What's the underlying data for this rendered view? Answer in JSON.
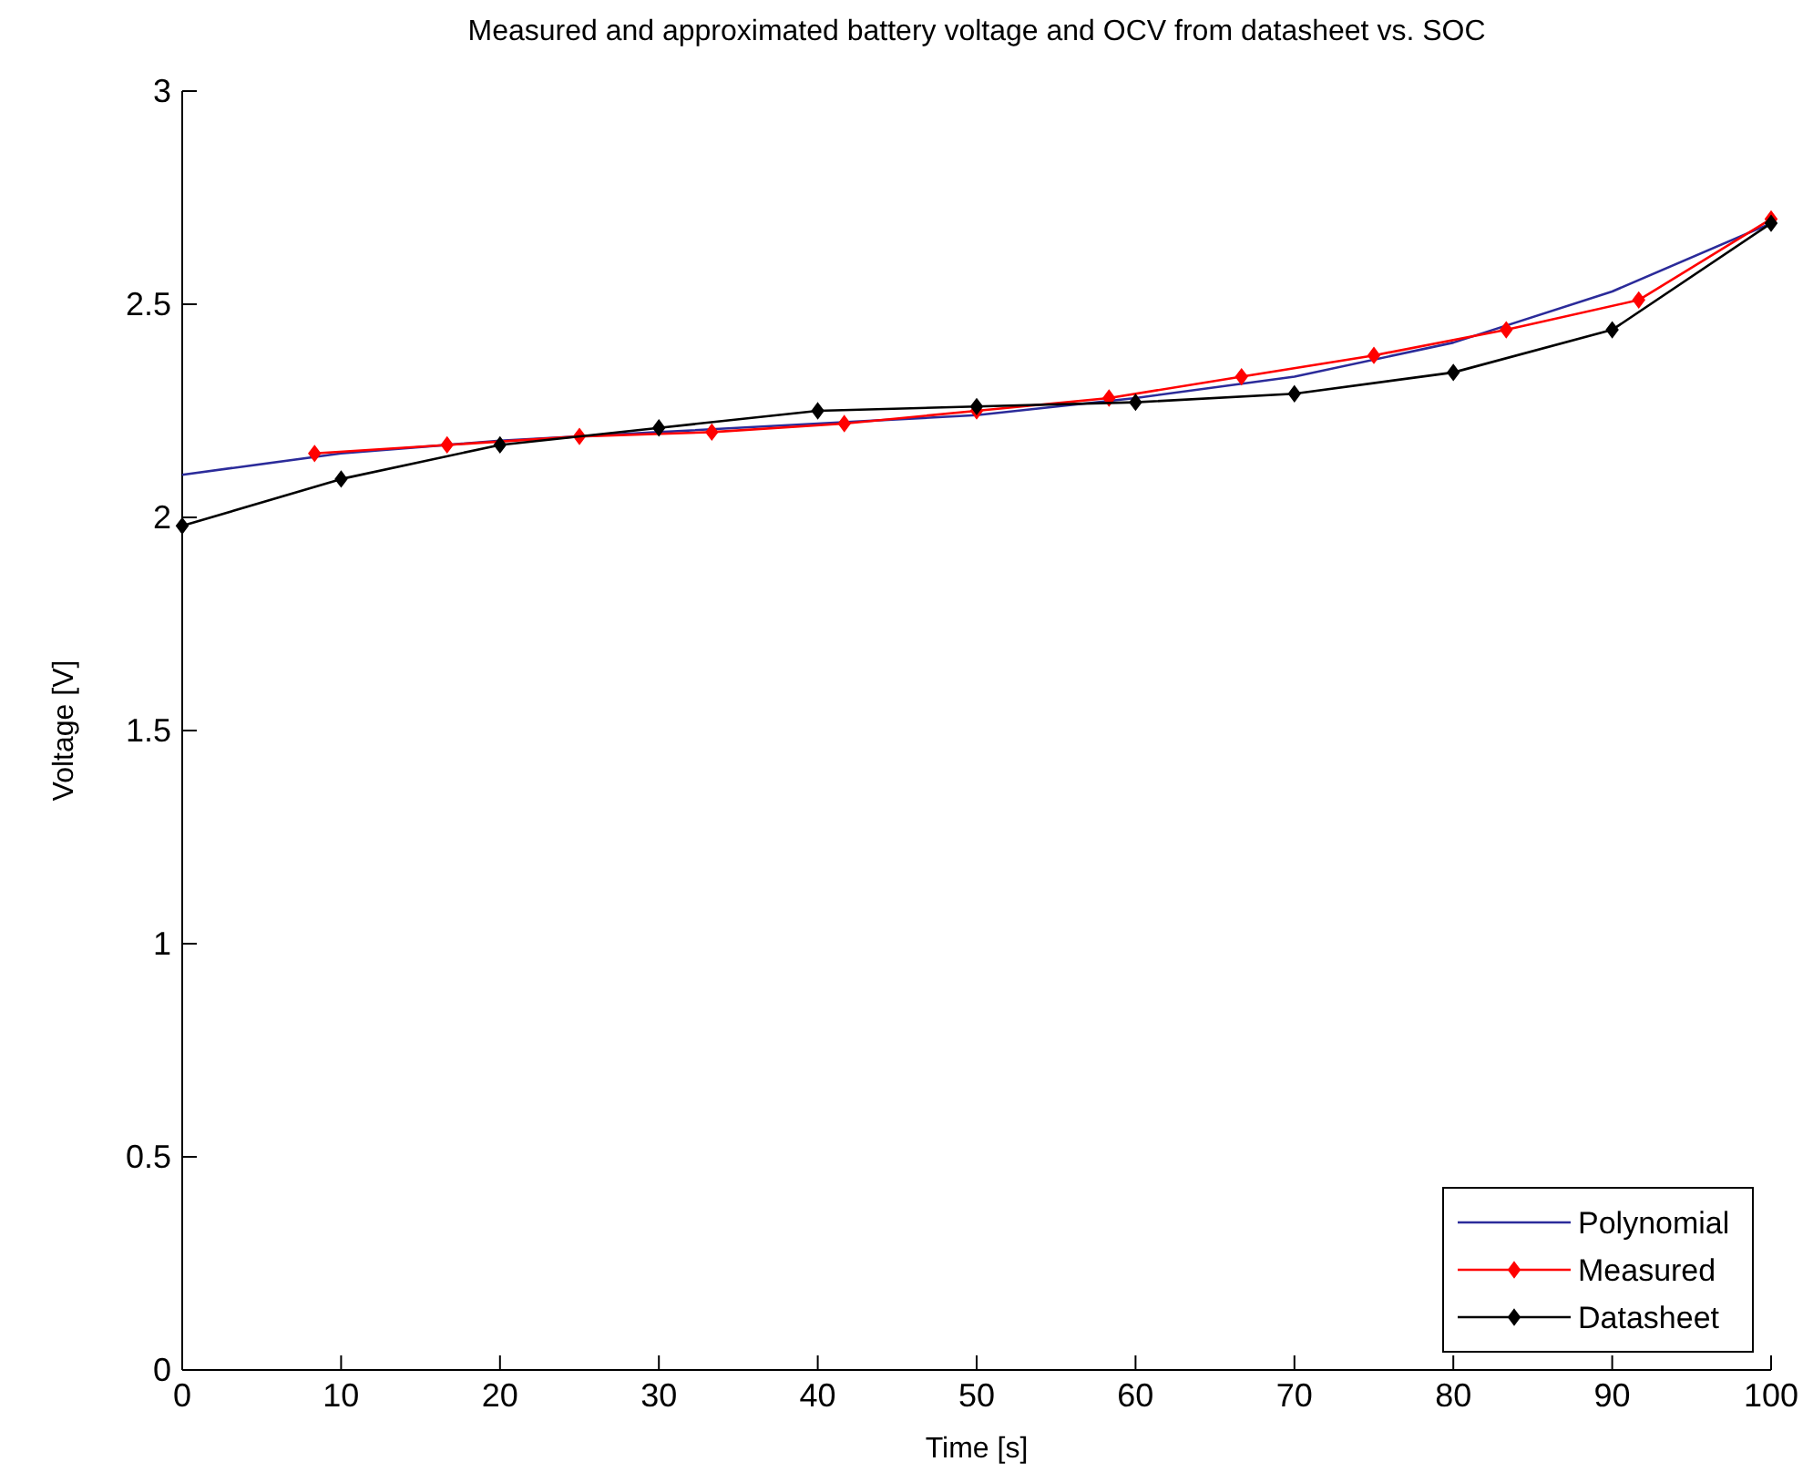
{
  "chart_data": {
    "type": "line",
    "title": "Measured and approximated battery voltage and OCV from datasheet vs. SOC",
    "xlabel": "Time [s]",
    "ylabel": "Voltage [V]",
    "xlim": [
      0,
      100
    ],
    "ylim": [
      0,
      3
    ],
    "xticks": [
      0,
      10,
      20,
      30,
      40,
      50,
      60,
      70,
      80,
      90,
      100
    ],
    "yticks": [
      0,
      0.5,
      1,
      1.5,
      2,
      2.5,
      3
    ],
    "legend": "bottom right",
    "grid": false,
    "series": [
      {
        "name": "Polynomial",
        "color": "#2b2b9a",
        "marker": "none",
        "x": [
          0,
          10,
          20,
          30,
          40,
          50,
          60,
          70,
          80,
          90,
          100
        ],
        "values": [
          2.1,
          2.15,
          2.18,
          2.2,
          2.22,
          2.24,
          2.28,
          2.33,
          2.41,
          2.53,
          2.69
        ]
      },
      {
        "name": "Measured",
        "color": "#ff0000",
        "marker": "diamond",
        "x": [
          8.33,
          16.67,
          25,
          33.33,
          41.67,
          50,
          58.33,
          66.67,
          75,
          83.33,
          91.67,
          100
        ],
        "values": [
          2.15,
          2.17,
          2.19,
          2.2,
          2.22,
          2.25,
          2.28,
          2.33,
          2.38,
          2.44,
          2.51,
          2.7
        ]
      },
      {
        "name": "Datasheet",
        "color": "#000000",
        "marker": "diamond",
        "x": [
          0,
          10,
          20,
          30,
          40,
          50,
          60,
          70,
          80,
          90,
          100
        ],
        "values": [
          1.98,
          2.09,
          2.17,
          2.21,
          2.25,
          2.26,
          2.27,
          2.29,
          2.34,
          2.44,
          2.69
        ]
      }
    ]
  }
}
